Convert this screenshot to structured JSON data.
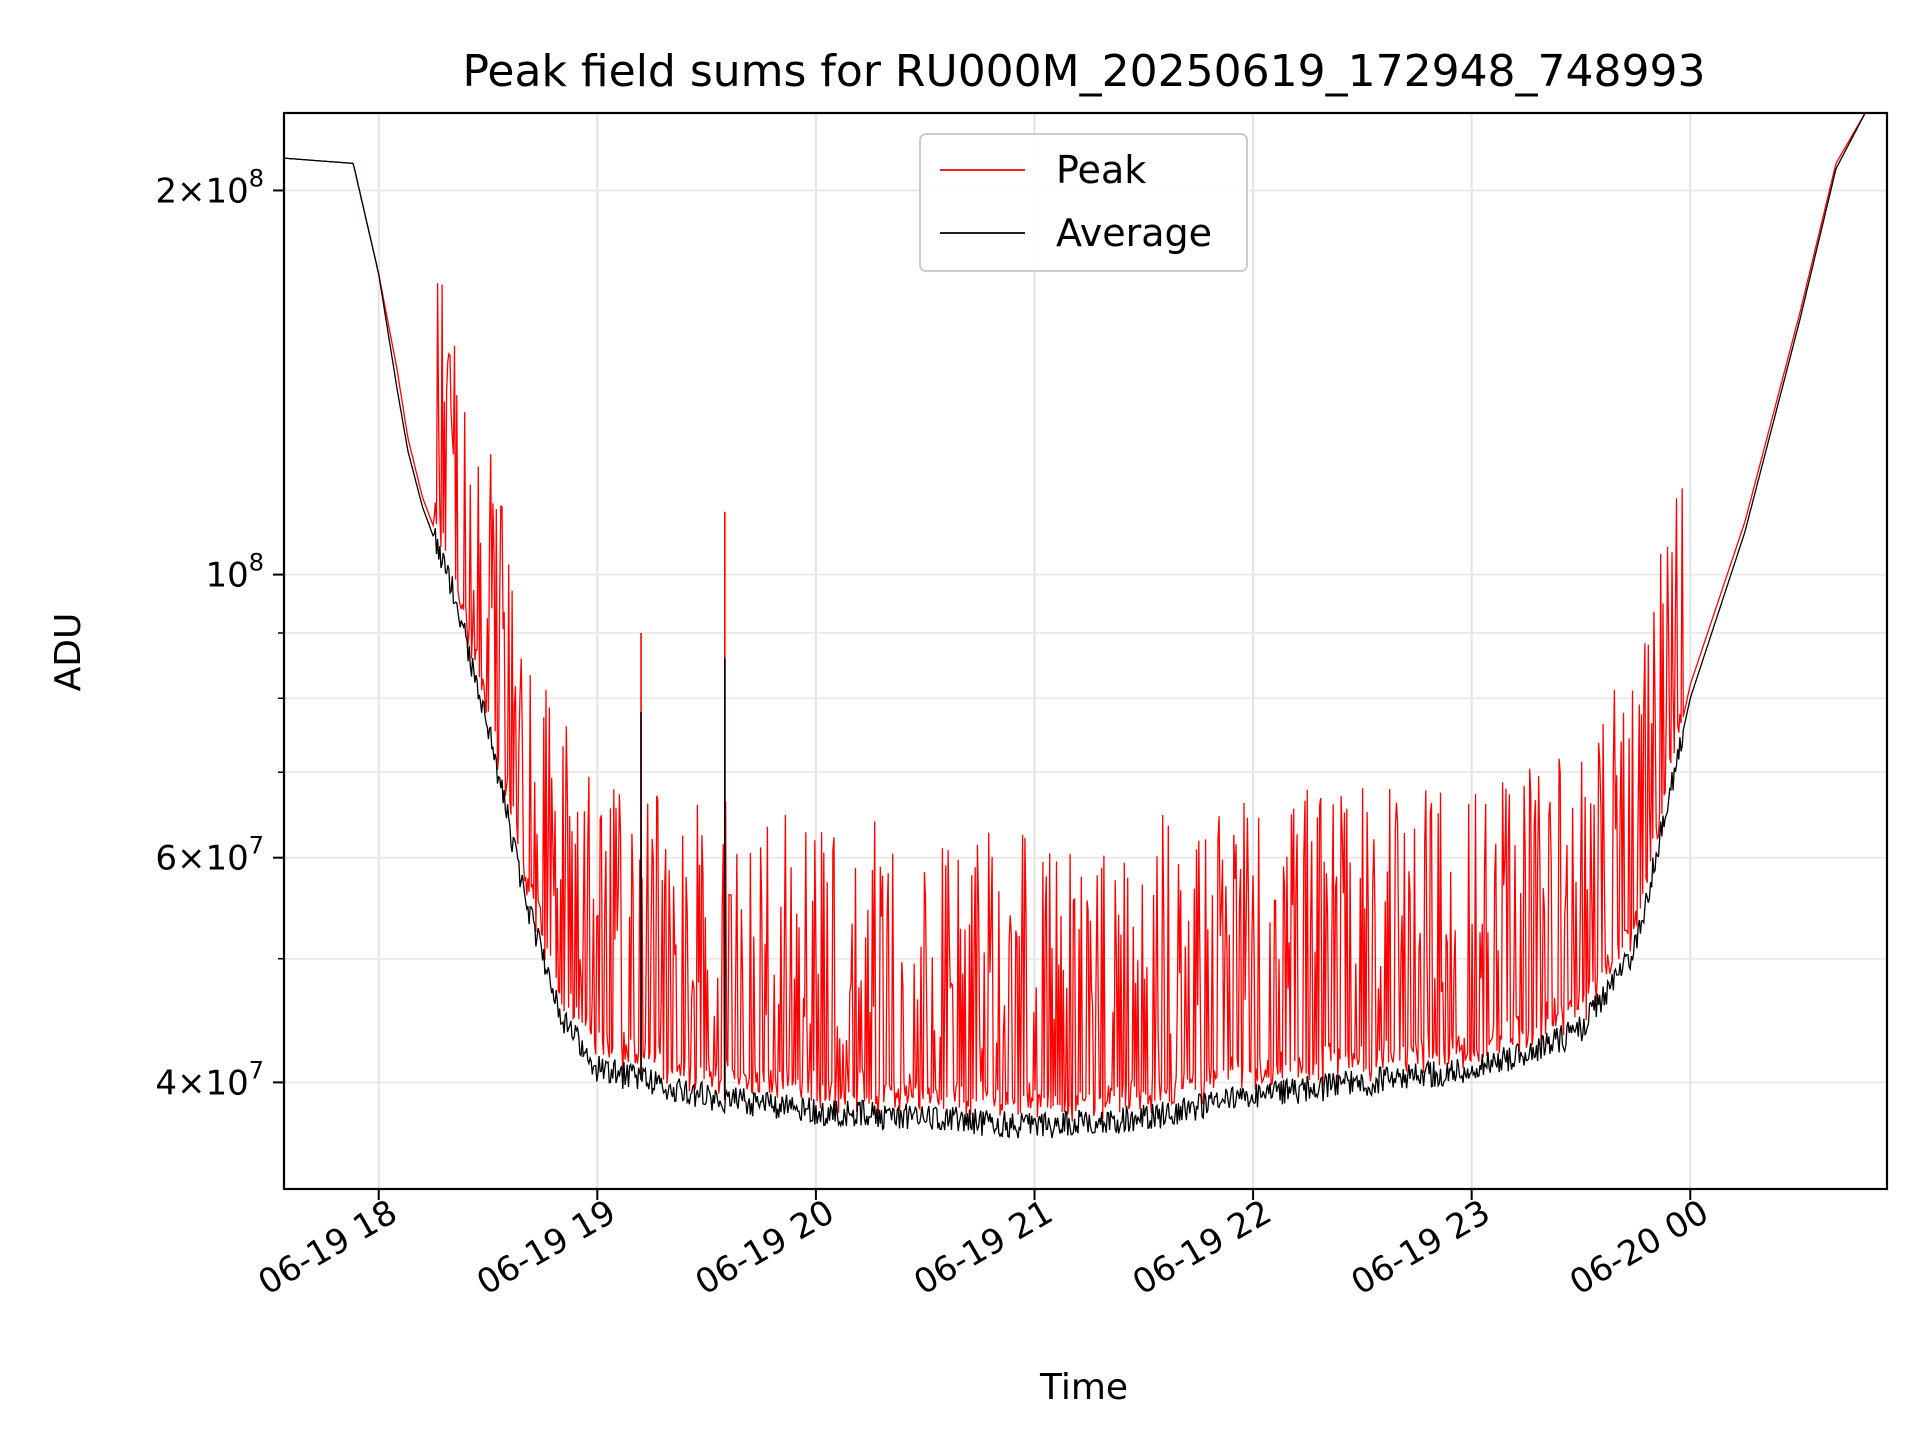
{
  "chart_data": {
    "type": "line",
    "title": "Peak field sums for RU000M_20250619_172948_748993",
    "xlabel": "Time",
    "ylabel": "ADU",
    "yscale": "log",
    "ylim": [
      33000000,
      230000000
    ],
    "xlim": [
      "2025-06-19 17:34",
      "2025-06-20 00:54"
    ],
    "grid": true,
    "legend_position": "top-center",
    "x_ticks": [
      {
        "label": "06-19 18",
        "time": "2025-06-19 18:00"
      },
      {
        "label": "06-19 19",
        "time": "2025-06-19 19:00"
      },
      {
        "label": "06-19 20",
        "time": "2025-06-19 20:00"
      },
      {
        "label": "06-19 21",
        "time": "2025-06-19 21:00"
      },
      {
        "label": "06-19 22",
        "time": "2025-06-19 22:00"
      },
      {
        "label": "06-19 23",
        "time": "2025-06-19 23:00"
      },
      {
        "label": "06-20 00",
        "time": "2025-06-20 00:00"
      }
    ],
    "y_ticks": [
      {
        "value": 40000000,
        "mantissa": "4",
        "exp": "7"
      },
      {
        "value": 60000000,
        "mantissa": "6",
        "exp": "7"
      },
      {
        "value": 100000000,
        "mantissa": "",
        "exp": "8"
      },
      {
        "value": 200000000,
        "mantissa": "2",
        "exp": "8"
      }
    ],
    "x": [
      "2025-06-19 17:34",
      "2025-06-19 17:53",
      "2025-06-19 18:00",
      "2025-06-19 18:05",
      "2025-06-19 18:08",
      "2025-06-19 18:12",
      "2025-06-19 18:20",
      "2025-06-19 18:30",
      "2025-06-19 18:40",
      "2025-06-19 18:50",
      "2025-06-19 19:00",
      "2025-06-19 19:30",
      "2025-06-19 20:00",
      "2025-06-19 20:30",
      "2025-06-19 21:00",
      "2025-06-19 21:30",
      "2025-06-19 22:00",
      "2025-06-19 22:30",
      "2025-06-19 23:00",
      "2025-06-19 23:15",
      "2025-06-19 23:30",
      "2025-06-19 23:45",
      "2025-06-20 00:00",
      "2025-06-20 00:15",
      "2025-06-20 00:30",
      "2025-06-20 00:40",
      "2025-06-20 00:48"
    ],
    "series": [
      {
        "name": "Peak",
        "color": "#ff0000",
        "values": [
          212000000,
          210000000,
          172000000,
          145000000,
          128000000,
          115000000,
          100000000,
          78000000,
          58000000,
          48000000,
          44000000,
          42000000,
          41000000,
          40000000,
          39000000,
          38500000,
          40000000,
          41000000,
          42000000,
          43000000,
          45000000,
          52000000,
          82000000,
          110000000,
          160000000,
          210000000,
          230000000
        ]
      },
      {
        "name": "Average",
        "color": "#000000",
        "values": [
          212000000,
          210000000,
          172000000,
          140000000,
          125000000,
          113000000,
          98000000,
          76000000,
          56000000,
          45000000,
          41000000,
          39000000,
          38000000,
          37500000,
          37000000,
          37500000,
          39000000,
          40000000,
          41000000,
          42000000,
          44000000,
          51000000,
          80000000,
          108000000,
          158000000,
          208000000,
          230000000
        ]
      }
    ],
    "annotations": [
      {
        "series": "Peak",
        "time": "2025-06-19 19:12",
        "value": 90000000
      },
      {
        "series": "Average",
        "time": "2025-06-19 19:12",
        "value": 78000000
      },
      {
        "series": "Peak",
        "time": "2025-06-19 19:35",
        "value": 112000000
      },
      {
        "series": "Average",
        "time": "2025-06-19 19:35",
        "value": 86000000
      }
    ]
  }
}
